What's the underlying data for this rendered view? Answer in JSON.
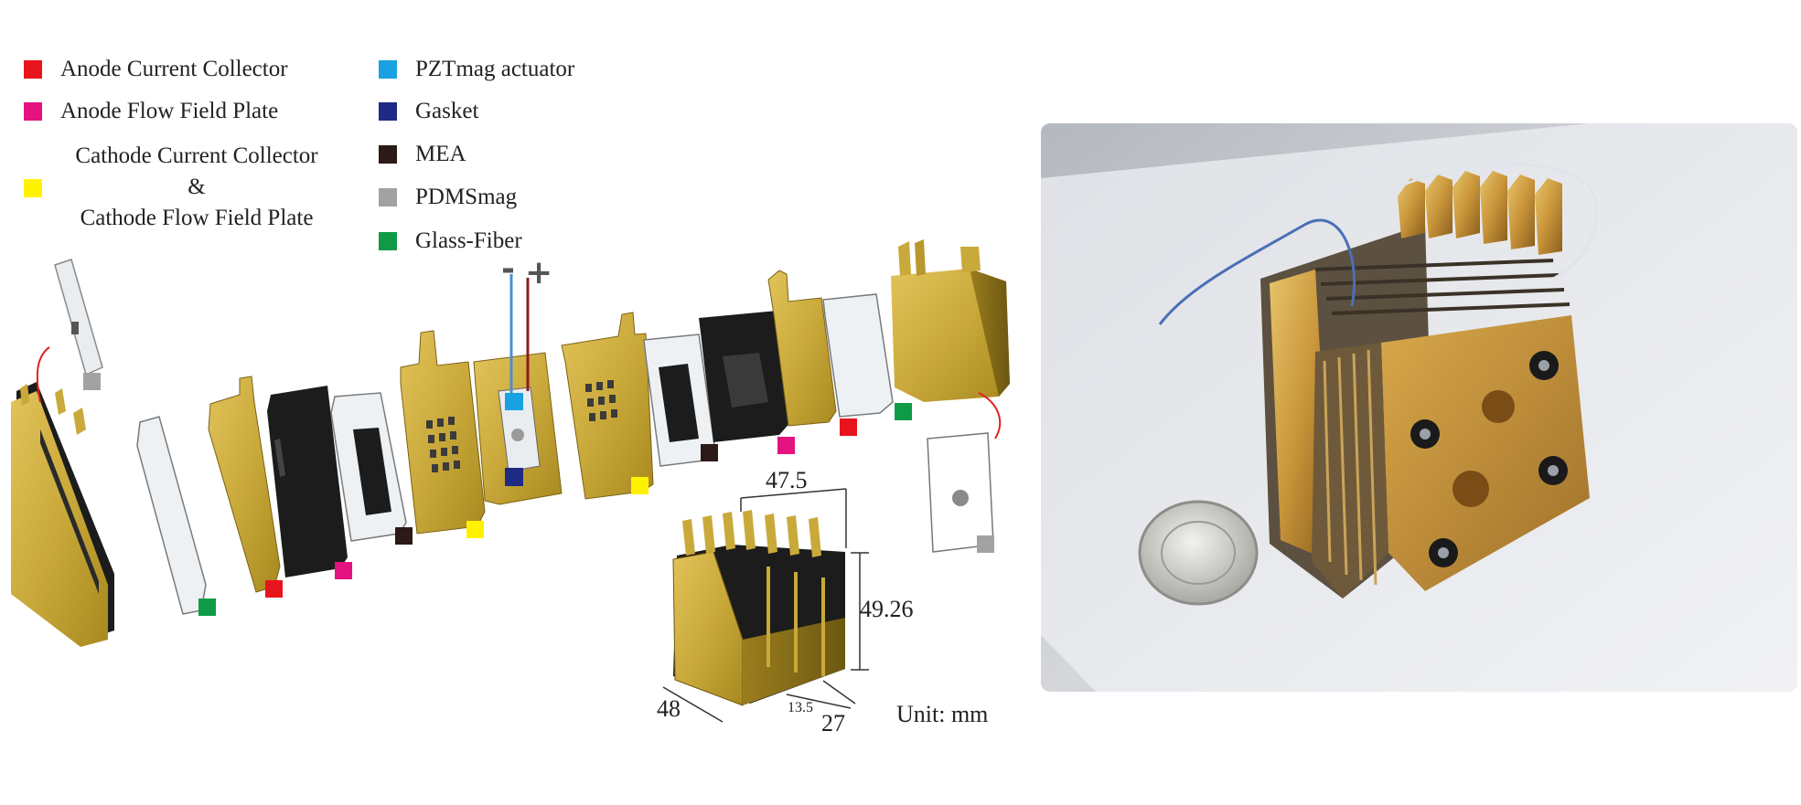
{
  "legend": {
    "col1": [
      {
        "label": "Anode Current Collector",
        "color": "#e8141c"
      },
      {
        "label": "Anode Flow Field Plate",
        "color": "#e4137f"
      }
    ],
    "cathode": {
      "line1": "Cathode Current Collector",
      "line2": "&",
      "line3": "Cathode Flow Field Plate",
      "color": "#fff200"
    },
    "col2": [
      {
        "label": "PZTmag actuator",
        "color": "#1aa1e1"
      },
      {
        "label": "Gasket",
        "color": "#1e2a84"
      },
      {
        "label": "MEA",
        "color": "#2b1a17"
      },
      {
        "label": "PDMSmag",
        "color": "#a2a2a2"
      },
      {
        "label": "Glass-Fiber",
        "color": "#0f9a48"
      }
    ]
  },
  "polarity": {
    "minus": "-",
    "plus": "+"
  },
  "dimensions": {
    "width_top": "47.5",
    "height": "49.26",
    "width_bottom": "48",
    "depth": "27",
    "half_depth": "13.5",
    "unit": "Unit: mm"
  },
  "colors": {
    "gold": "#c9a93a",
    "gold_dark": "#8f7420",
    "black_plate": "#1c1c1c",
    "white_plate": "#eef1f4"
  }
}
